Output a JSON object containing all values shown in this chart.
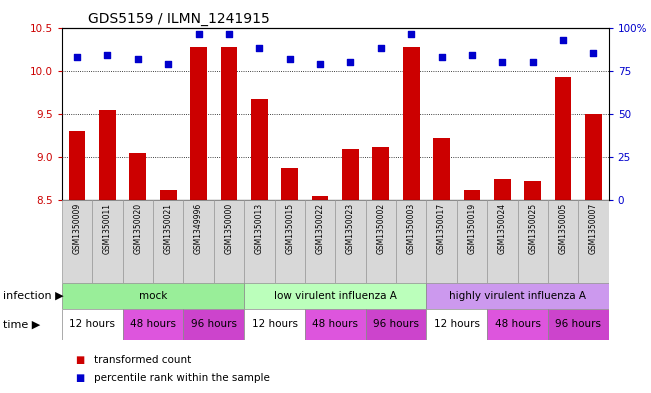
{
  "title": "GDS5159 / ILMN_1241915",
  "samples": [
    "GSM1350009",
    "GSM1350011",
    "GSM1350020",
    "GSM1350021",
    "GSM1349996",
    "GSM1350000",
    "GSM1350013",
    "GSM1350015",
    "GSM1350022",
    "GSM1350023",
    "GSM1350002",
    "GSM1350003",
    "GSM1350017",
    "GSM1350019",
    "GSM1350024",
    "GSM1350025",
    "GSM1350005",
    "GSM1350007"
  ],
  "bar_values": [
    9.3,
    9.55,
    9.05,
    8.62,
    10.28,
    10.28,
    9.67,
    8.87,
    8.55,
    9.1,
    9.12,
    10.28,
    9.22,
    8.62,
    8.75,
    8.72,
    9.93,
    9.5
  ],
  "percentile_values": [
    83,
    84,
    82,
    79,
    96,
    96,
    88,
    82,
    79,
    80,
    88,
    96,
    83,
    84,
    80,
    80,
    93,
    85
  ],
  "ylim_left": [
    8.5,
    10.5
  ],
  "ylim_right": [
    0,
    100
  ],
  "yticks_left": [
    8.5,
    9.0,
    9.5,
    10.0,
    10.5
  ],
  "yticks_right": [
    0,
    25,
    50,
    75,
    100
  ],
  "ytick_labels_right": [
    "0",
    "25",
    "50",
    "75",
    "100%"
  ],
  "bar_color": "#cc0000",
  "dot_color": "#0000cc",
  "infection_groups": [
    {
      "label": "mock",
      "start": 0,
      "end": 6,
      "color": "#99ee99"
    },
    {
      "label": "low virulent influenza A",
      "start": 6,
      "end": 12,
      "color": "#bbffbb"
    },
    {
      "label": "highly virulent influenza A",
      "start": 12,
      "end": 18,
      "color": "#cc99ee"
    }
  ],
  "time_groups": [
    {
      "label": "12 hours",
      "start": 0,
      "end": 2,
      "color": "#ffffff"
    },
    {
      "label": "48 hours",
      "start": 2,
      "end": 4,
      "color": "#dd55dd"
    },
    {
      "label": "96 hours",
      "start": 4,
      "end": 6,
      "color": "#cc44cc"
    },
    {
      "label": "12 hours",
      "start": 6,
      "end": 8,
      "color": "#ffffff"
    },
    {
      "label": "48 hours",
      "start": 8,
      "end": 10,
      "color": "#dd55dd"
    },
    {
      "label": "96 hours",
      "start": 10,
      "end": 12,
      "color": "#cc44cc"
    },
    {
      "label": "12 hours",
      "start": 12,
      "end": 14,
      "color": "#ffffff"
    },
    {
      "label": "48 hours",
      "start": 14,
      "end": 16,
      "color": "#dd55dd"
    },
    {
      "label": "96 hours",
      "start": 16,
      "end": 18,
      "color": "#cc44cc"
    }
  ],
  "infection_label": "infection",
  "time_label": "time",
  "legend_bar_label": "transformed count",
  "legend_dot_label": "percentile rank within the sample",
  "title_fontsize": 10,
  "tick_fontsize": 7.5,
  "label_fontsize": 8,
  "sample_fontsize": 5.5,
  "row_fontsize": 7.5,
  "background_color": "#ffffff",
  "sample_cell_color": "#d8d8d8",
  "sample_cell_edge": "#999999"
}
